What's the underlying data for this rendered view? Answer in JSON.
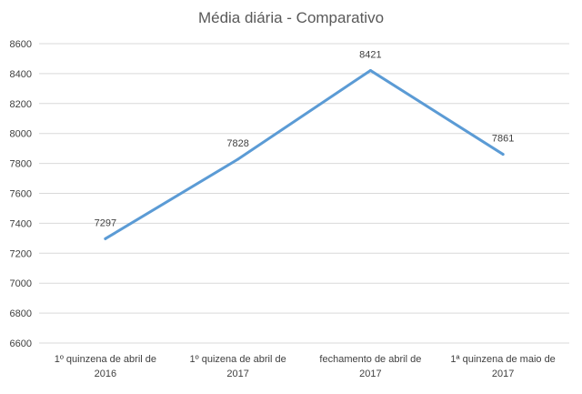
{
  "chart_data": {
    "type": "line",
    "title": "Média diária - Comparativo",
    "xlabel": "",
    "ylabel": "",
    "categories": [
      [
        "1º quinzena de abril de",
        "2016"
      ],
      [
        "1º quizena de abril de",
        "2017"
      ],
      [
        "fechamento de abril de",
        "2017"
      ],
      [
        "1ª quinzena de maio de",
        "2017"
      ]
    ],
    "series": [
      {
        "values": [
          7297,
          7828,
          8421,
          7861
        ]
      }
    ],
    "ylim": [
      6600,
      8600
    ],
    "yticks": [
      6600,
      6800,
      7000,
      7200,
      7400,
      7600,
      7800,
      8000,
      8200,
      8400,
      8600
    ],
    "grid": true,
    "legend": "none",
    "colors": {
      "line": "#5B9BD5",
      "grid": "#D9D9D9",
      "text": "#404040",
      "title": "#595959"
    }
  }
}
